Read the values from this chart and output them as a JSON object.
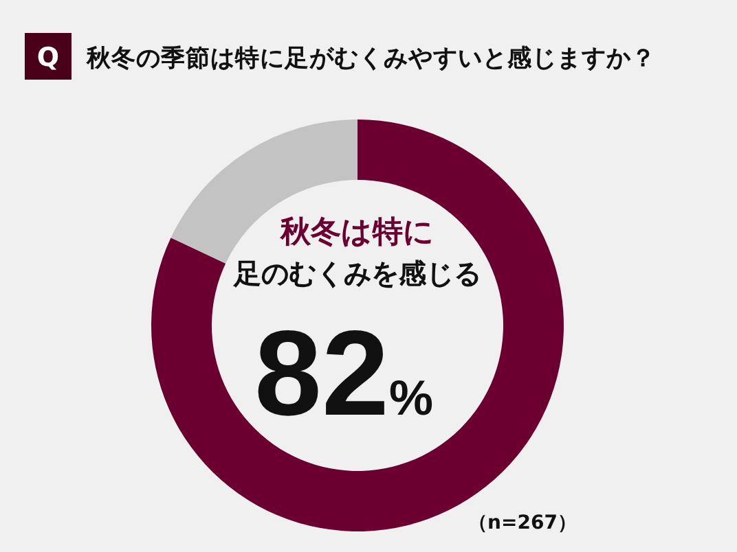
{
  "chart_data": {
    "type": "donut",
    "title": "秋冬の季節は特に足がむくみやすいと感じますか？",
    "categories": [
      null,
      null
    ],
    "values": [
      82,
      18
    ],
    "colors": [
      "#6b0030",
      "#c3c3c3"
    ],
    "value_labels": [
      "82%",
      null
    ],
    "annotations": [
      "Q",
      "秋冬は特に",
      "足のむくみを感じる",
      "（n=267）"
    ]
  }
}
